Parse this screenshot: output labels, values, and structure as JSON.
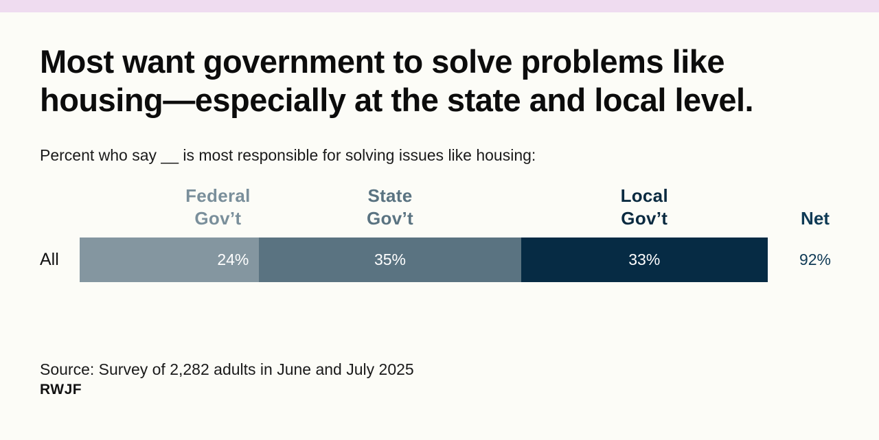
{
  "title": "Most want government to solve problems like housing—especially at the state and local level.",
  "subtitle": "Percent who say __ is most responsible for solving issues like housing:",
  "chart_data": {
    "type": "bar",
    "orientation": "horizontal",
    "stacked": true,
    "categories": [
      "All"
    ],
    "series": [
      {
        "name": "Federal Gov’t",
        "name_lines": [
          "Federal",
          "Gov’t"
        ],
        "values": [
          24
        ],
        "label": "24%",
        "color": "#8496a0",
        "header_color": "#7a8f9b"
      },
      {
        "name": "State Gov’t",
        "name_lines": [
          "State",
          "Gov’t"
        ],
        "values": [
          35
        ],
        "label": "35%",
        "color": "#5a7381",
        "header_color": "#5a7381"
      },
      {
        "name": "Local Gov’t",
        "name_lines": [
          "Local",
          "Gov’t"
        ],
        "values": [
          33
        ],
        "label": "33%",
        "color": "#062b44",
        "header_color": "#0a2a40"
      }
    ],
    "net": {
      "label": "Net",
      "values": [
        92
      ],
      "value_label": "92%",
      "color": "#0f3a55"
    },
    "xlim": [
      0,
      92
    ],
    "unit": "%"
  },
  "footer": {
    "source": "Source: Survey of 2,282 adults in June and July 2025",
    "brand": "RWJF"
  },
  "colors": {
    "background": "#fcfcf7",
    "top_band": "#efdcf0",
    "text": "#111111"
  }
}
